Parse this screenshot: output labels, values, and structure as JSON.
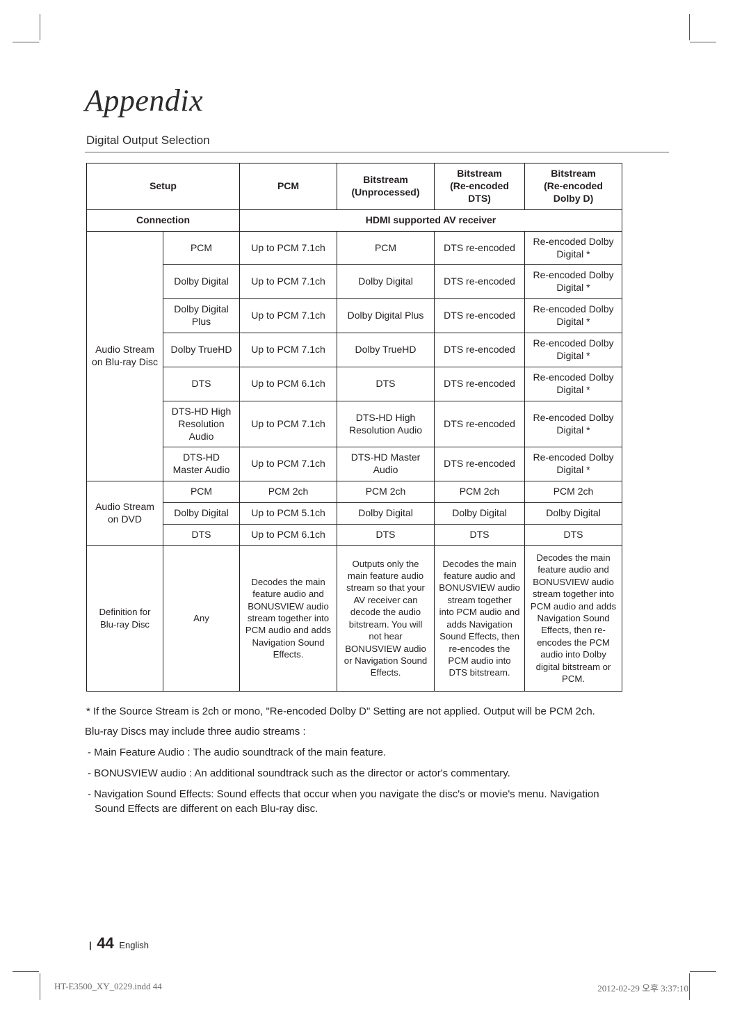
{
  "title": "Appendix",
  "section": "Digital Output Selection",
  "headers": {
    "setup": "Setup",
    "pcm": "PCM",
    "bs_unproc": "Bitstream\n(Unprocessed)",
    "bs_dts": "Bitstream\n(Re-encoded DTS)",
    "bs_dolby": "Bitstream\n(Re-encoded\nDolby D)",
    "connection": "Connection",
    "hdmi": "HDMI supported AV receiver"
  },
  "groups": {
    "bluray": "Audio Stream on Blu-ray Disc",
    "dvd": "Audio Stream on DVD",
    "def": "Definition for Blu-ray Disc"
  },
  "rows": {
    "r1": {
      "a": "PCM",
      "b": "Up to PCM 7.1ch",
      "c": "PCM",
      "d": "DTS re-encoded",
      "e": "Re-encoded Dolby Digital *"
    },
    "r2": {
      "a": "Dolby Digital",
      "b": "Up to PCM 7.1ch",
      "c": "Dolby Digital",
      "d": "DTS re-encoded",
      "e": "Re-encoded Dolby Digital *"
    },
    "r3": {
      "a": "Dolby Digital Plus",
      "b": "Up to PCM 7.1ch",
      "c": "Dolby Digital Plus",
      "d": "DTS re-encoded",
      "e": "Re-encoded Dolby Digital *"
    },
    "r4": {
      "a": "Dolby TrueHD",
      "b": "Up to PCM 7.1ch",
      "c": "Dolby TrueHD",
      "d": "DTS re-encoded",
      "e": "Re-encoded Dolby Digital *"
    },
    "r5": {
      "a": "DTS",
      "b": "Up to PCM 6.1ch",
      "c": "DTS",
      "d": "DTS re-encoded",
      "e": "Re-encoded Dolby Digital *"
    },
    "r6": {
      "a": "DTS-HD High Resolution Audio",
      "b": "Up to PCM 7.1ch",
      "c": "DTS-HD High Resolution Audio",
      "d": "DTS re-encoded",
      "e": "Re-encoded Dolby Digital *"
    },
    "r7": {
      "a": "DTS-HD Master Audio",
      "b": "Up to PCM 7.1ch",
      "c": "DTS-HD Master Audio",
      "d": "DTS re-encoded",
      "e": "Re-encoded Dolby Digital *"
    },
    "d1": {
      "a": "PCM",
      "b": "PCM 2ch",
      "c": "PCM 2ch",
      "d": "PCM 2ch",
      "e": "PCM 2ch"
    },
    "d2": {
      "a": "Dolby Digital",
      "b": "Up to PCM 5.1ch",
      "c": "Dolby Digital",
      "d": "Dolby Digital",
      "e": "Dolby Digital"
    },
    "d3": {
      "a": "DTS",
      "b": "Up to PCM 6.1ch",
      "c": "DTS",
      "d": "DTS",
      "e": "DTS"
    },
    "def": {
      "a": "Any",
      "b": "Decodes the main feature audio and BONUSVIEW audio stream together into PCM audio and adds Navigation Sound Effects.",
      "c": "Outputs only the main feature audio stream so that your AV receiver can decode the audio bitstream. You will not hear BONUSVIEW audio or Navigation Sound Effects.",
      "d": "Decodes the main feature audio and BONUSVIEW audio stream together into PCM audio and adds Navigation Sound Effects, then re-encodes the PCM audio into DTS bitstream.",
      "e": "Decodes the main feature audio and BONUSVIEW audio stream together into PCM audio and adds Navigation Sound Effects, then re-encodes the PCM audio into Dolby digital bitstream or PCM."
    }
  },
  "notes": {
    "n1": "* If the Source Stream is 2ch or mono, \"Re-encoded Dolby D\" Setting are not applied. Output will be PCM 2ch.",
    "n2": "Blu-ray Discs may include three audio streams :",
    "n3": "- Main Feature Audio : The audio soundtrack of the main feature.",
    "n4": "- BONUSVIEW audio : An additional soundtrack such as the director or actor's commentary.",
    "n5": "- Navigation Sound Effects: Sound effects that occur when you navigate the disc's or movie's menu. Navigation Sound Effects are different on each Blu-ray disc."
  },
  "footer": {
    "page": "44",
    "lang": "English"
  },
  "meta": {
    "file": "HT-E3500_XY_0229.indd   44",
    "ts": "2012-02-29   오후 3:37:10"
  },
  "style": {
    "page_bg": "#ffffff",
    "text_color": "#231f20",
    "border_color": "#231f20",
    "rule_color": "#b9b9b9",
    "title_font": "Georgia serif italic",
    "title_size_pt": 33,
    "body_size_pt": 11,
    "table_size_pt": 10.5
  }
}
